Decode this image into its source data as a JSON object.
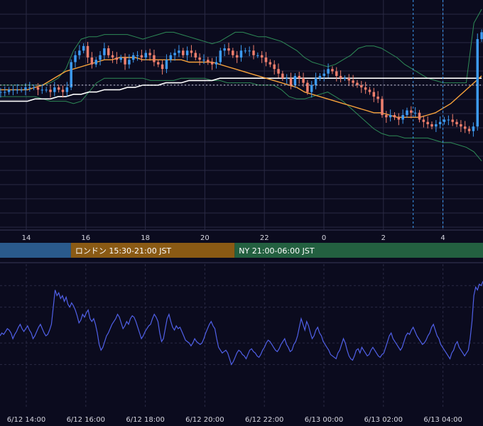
{
  "colors": {
    "background": "#0b0b1e",
    "grid": "#2a2a44",
    "candle_up": "#3d9bf2",
    "candle_down": "#ef7f6d",
    "ma_short": "#f7a23b",
    "ma_long": "#ffffff",
    "bollinger": "#2e8b57",
    "rsi": "#5060e8",
    "session_tokyo": "#2a5a8c",
    "session_london": "#8a5a14",
    "session_ny": "#236040",
    "session_text": "#ffffff"
  },
  "sessions": [
    {
      "label": "",
      "start_hour": 13.0,
      "end_hour": 15.5
    },
    {
      "label": "ロンドン 15:30-21:00 JST",
      "start_hour": 15.5,
      "end_hour": 21.0
    },
    {
      "label": "NY 21:00-06:00 JST",
      "start_hour": 21.0,
      "end_hour": 30.0
    }
  ],
  "chart_data": [
    {
      "type": "candlestick",
      "title": "",
      "x_start_hour": 13.0,
      "x_end_hour": 29.3,
      "x_tick_labels": [
        "14",
        "16",
        "18",
        "20",
        "22",
        "0",
        "2",
        "4"
      ],
      "x_tick_hours": [
        14,
        16,
        18,
        20,
        22,
        24,
        26,
        28
      ],
      "vertical_markers_hours": [
        27.0,
        28.0
      ],
      "ylim": [
        0,
        100
      ],
      "current_level": 63,
      "grid": true,
      "series": [
        {
          "name": "",
          "kind": "price",
          "values": [
            60,
            60,
            60,
            61,
            61,
            61,
            61,
            62,
            62,
            62,
            61,
            61,
            61,
            60,
            62,
            61,
            60,
            62,
            73,
            76,
            78,
            80,
            75,
            72,
            74,
            76,
            79,
            76,
            75,
            74,
            75,
            72,
            74,
            76,
            76,
            75,
            77,
            76,
            73,
            72,
            70,
            74,
            76,
            77,
            78,
            76,
            78,
            77,
            75,
            74,
            74,
            73,
            72,
            73,
            78,
            79,
            78,
            76,
            75,
            78,
            78,
            78,
            76,
            76,
            75,
            73,
            72,
            70,
            68,
            66,
            66,
            63,
            67,
            66,
            64,
            60,
            63,
            66,
            67,
            68,
            70,
            69,
            67,
            66,
            66,
            65,
            64,
            63,
            62,
            61,
            60,
            58,
            57,
            50,
            49,
            50,
            49,
            48,
            50,
            52,
            51,
            51,
            48,
            47,
            46,
            45,
            46,
            47,
            48,
            48,
            47,
            46,
            45,
            44,
            43,
            45,
            83,
            86
          ]
        },
        {
          "name": "",
          "kind": "ma_short",
          "values": [
            61,
            61,
            61,
            61,
            61,
            62,
            63,
            65,
            67,
            69,
            70,
            71,
            72,
            73,
            74,
            74,
            75,
            75,
            75,
            74,
            74,
            74,
            74,
            74,
            74,
            73,
            73,
            73,
            73,
            72,
            71,
            70,
            69,
            68,
            67,
            66,
            65,
            64,
            63,
            62,
            60,
            59,
            58,
            57,
            56,
            55,
            54,
            53,
            52,
            51,
            51,
            50,
            49,
            49,
            49,
            49,
            50,
            51,
            53,
            55,
            58,
            61,
            64,
            67
          ]
        },
        {
          "name": "",
          "kind": "ma_long",
          "values": [
            56,
            56,
            56,
            56,
            56,
            57,
            57,
            57,
            58,
            58,
            59,
            59,
            60,
            60,
            61,
            61,
            61,
            62,
            62,
            63,
            63,
            63,
            64,
            64,
            64,
            65,
            65,
            65,
            65,
            66,
            66,
            66,
            66,
            66,
            66,
            66,
            66,
            66,
            66,
            66,
            66,
            66,
            66,
            66,
            66,
            66,
            66,
            66,
            66,
            66,
            66,
            66,
            66,
            66,
            66,
            66,
            66,
            66,
            66,
            66,
            66,
            66,
            66,
            66
          ]
        },
        {
          "name": "",
          "kind": "bollinger_upper",
          "values": [
            63,
            63,
            63,
            63,
            63,
            63,
            63,
            64,
            66,
            70,
            78,
            83,
            84,
            84,
            85,
            85,
            85,
            85,
            84,
            83,
            84,
            85,
            86,
            86,
            85,
            84,
            83,
            82,
            81,
            82,
            84,
            86,
            86,
            85,
            84,
            84,
            83,
            82,
            80,
            78,
            75,
            73,
            72,
            71,
            72,
            74,
            76,
            79,
            80,
            80,
            79,
            77,
            75,
            72,
            70,
            68,
            66,
            65,
            64,
            64,
            64,
            64,
            90,
            96
          ]
        },
        {
          "name": "",
          "kind": "bollinger_lower",
          "values": [
            58,
            58,
            58,
            58,
            58,
            58,
            57,
            56,
            56,
            56,
            55,
            56,
            60,
            64,
            66,
            66,
            66,
            66,
            66,
            66,
            65,
            65,
            65,
            65,
            66,
            66,
            66,
            66,
            65,
            65,
            64,
            64,
            64,
            64,
            63,
            63,
            63,
            61,
            58,
            57,
            57,
            58,
            59,
            60,
            58,
            56,
            53,
            50,
            47,
            44,
            42,
            41,
            41,
            40,
            40,
            40,
            40,
            39,
            38,
            38,
            37,
            36,
            34,
            30
          ]
        }
      ]
    },
    {
      "type": "line",
      "title": "",
      "x_tick_labels": [
        "6/12 14:00",
        "6/12 16:00",
        "6/12 18:00",
        "6/12 20:00",
        "6/12 22:00",
        "6/13 00:00",
        "6/13 02:00",
        "6/13 04:00"
      ],
      "x_tick_hours": [
        14,
        16,
        18,
        20,
        22,
        24,
        26,
        28
      ],
      "ylim": [
        0,
        100
      ],
      "grid": true,
      "series": [
        {
          "name": "",
          "values": [
            50,
            52,
            51,
            53,
            55,
            54,
            52,
            48,
            51,
            53,
            56,
            58,
            55,
            53,
            55,
            57,
            54,
            52,
            48,
            50,
            53,
            56,
            58,
            55,
            52,
            50,
            51,
            54,
            58,
            70,
            82,
            78,
            80,
            76,
            78,
            74,
            77,
            72,
            70,
            73,
            71,
            68,
            64,
            59,
            61,
            65,
            63,
            66,
            68,
            62,
            60,
            62,
            58,
            52,
            44,
            40,
            42,
            46,
            50,
            52,
            55,
            58,
            60,
            62,
            65,
            63,
            59,
            55,
            57,
            60,
            58,
            62,
            64,
            63,
            60,
            56,
            52,
            48,
            50,
            53,
            55,
            57,
            58,
            62,
            65,
            63,
            60,
            52,
            46,
            48,
            55,
            62,
            65,
            60,
            56,
            54,
            57,
            55,
            56,
            53,
            50,
            47,
            46,
            45,
            43,
            45,
            48,
            46,
            45,
            44,
            45,
            48,
            52,
            55,
            58,
            60,
            57,
            55,
            48,
            42,
            40,
            38,
            39,
            40,
            38,
            34,
            30,
            32,
            35,
            38,
            40,
            39,
            37,
            36,
            34,
            37,
            40,
            41,
            39,
            38,
            36,
            35,
            37,
            40,
            42,
            45,
            47,
            46,
            44,
            42,
            40,
            39,
            41,
            44,
            46,
            48,
            44,
            42,
            39,
            40,
            44,
            46,
            50,
            56,
            62,
            58,
            54,
            60,
            57,
            52,
            48,
            50,
            54,
            56,
            52,
            50,
            46,
            44,
            42,
            40,
            37,
            36,
            35,
            34,
            38,
            40,
            44,
            48,
            45,
            40,
            36,
            34,
            33,
            36,
            40,
            41,
            38,
            42,
            40,
            38,
            36,
            37,
            40,
            42,
            40,
            38,
            36,
            35,
            37,
            38,
            42,
            46,
            50,
            52,
            48,
            46,
            44,
            42,
            40,
            42,
            46,
            50,
            52,
            51,
            54,
            56,
            53,
            50,
            48,
            46,
            44,
            45,
            47,
            50,
            52,
            56,
            58,
            54,
            50,
            48,
            44,
            42,
            40,
            38,
            36,
            34,
            38,
            40,
            44,
            46,
            42,
            40,
            38,
            36,
            38,
            40,
            48,
            60,
            78,
            84,
            82,
            86,
            85,
            88
          ]
        }
      ]
    }
  ]
}
